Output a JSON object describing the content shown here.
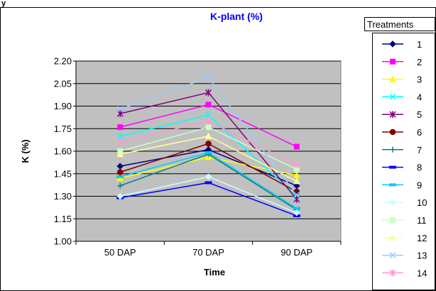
{
  "chart_data": {
    "type": "line",
    "title": "K-plant (%)",
    "top_left_text": "y",
    "xlabel": "Time",
    "ylabel": "K (%)",
    "categories": [
      "50 DAP",
      "70 DAP",
      "90 DAP"
    ],
    "ylim": [
      1.0,
      2.2
    ],
    "yticks": [
      "1.00",
      "1.15",
      "1.30",
      "1.45",
      "1.60",
      "1.75",
      "1.90",
      "2.05",
      "2.20"
    ],
    "grid": true,
    "legend_title": "Treatments",
    "legend_position": "right",
    "series": [
      {
        "name": "1",
        "values": [
          1.5,
          1.61,
          1.37
        ],
        "color": "#000080",
        "marker": "diamond"
      },
      {
        "name": "2",
        "values": [
          1.76,
          1.91,
          1.63
        ],
        "color": "#FF00FF",
        "marker": "square"
      },
      {
        "name": "3",
        "values": [
          1.42,
          1.56,
          1.44
        ],
        "color": "#FFFF00",
        "marker": "triangle"
      },
      {
        "name": "4",
        "values": [
          1.7,
          1.84,
          1.3
        ],
        "color": "#00FFFF",
        "marker": "x"
      },
      {
        "name": "5",
        "values": [
          1.85,
          1.99,
          1.28
        ],
        "color": "#800080",
        "marker": "star"
      },
      {
        "name": "6",
        "values": [
          1.46,
          1.65,
          1.33
        ],
        "color": "#800000",
        "marker": "circle"
      },
      {
        "name": "7",
        "values": [
          1.37,
          1.58,
          1.21
        ],
        "color": "#008080",
        "marker": "plus"
      },
      {
        "name": "8",
        "values": [
          1.29,
          1.39,
          1.17
        ],
        "color": "#0000FF",
        "marker": "dash"
      },
      {
        "name": "9",
        "values": [
          1.43,
          1.59,
          1.22
        ],
        "color": "#00CCFF",
        "marker": "dash"
      },
      {
        "name": "10",
        "values": [
          1.3,
          1.43,
          1.19
        ],
        "color": "#CCFFFF",
        "marker": "diamond"
      },
      {
        "name": "11",
        "values": [
          1.6,
          1.76,
          1.48
        ],
        "color": "#CCFFCC",
        "marker": "square"
      },
      {
        "name": "12",
        "values": [
          1.58,
          1.7,
          1.4
        ],
        "color": "#FFFF99",
        "marker": "triangle"
      },
      {
        "name": "13",
        "values": [
          1.88,
          2.09,
          1.31
        ],
        "color": "#99CCFF",
        "marker": "x"
      },
      {
        "name": "14",
        "values": [
          1.66,
          1.8,
          1.51
        ],
        "color": "#FF99CC",
        "marker": "star"
      }
    ],
    "colors": {
      "plot_area": "#C0C0C0",
      "title": "#0000FF",
      "gridline": "#000000"
    }
  }
}
